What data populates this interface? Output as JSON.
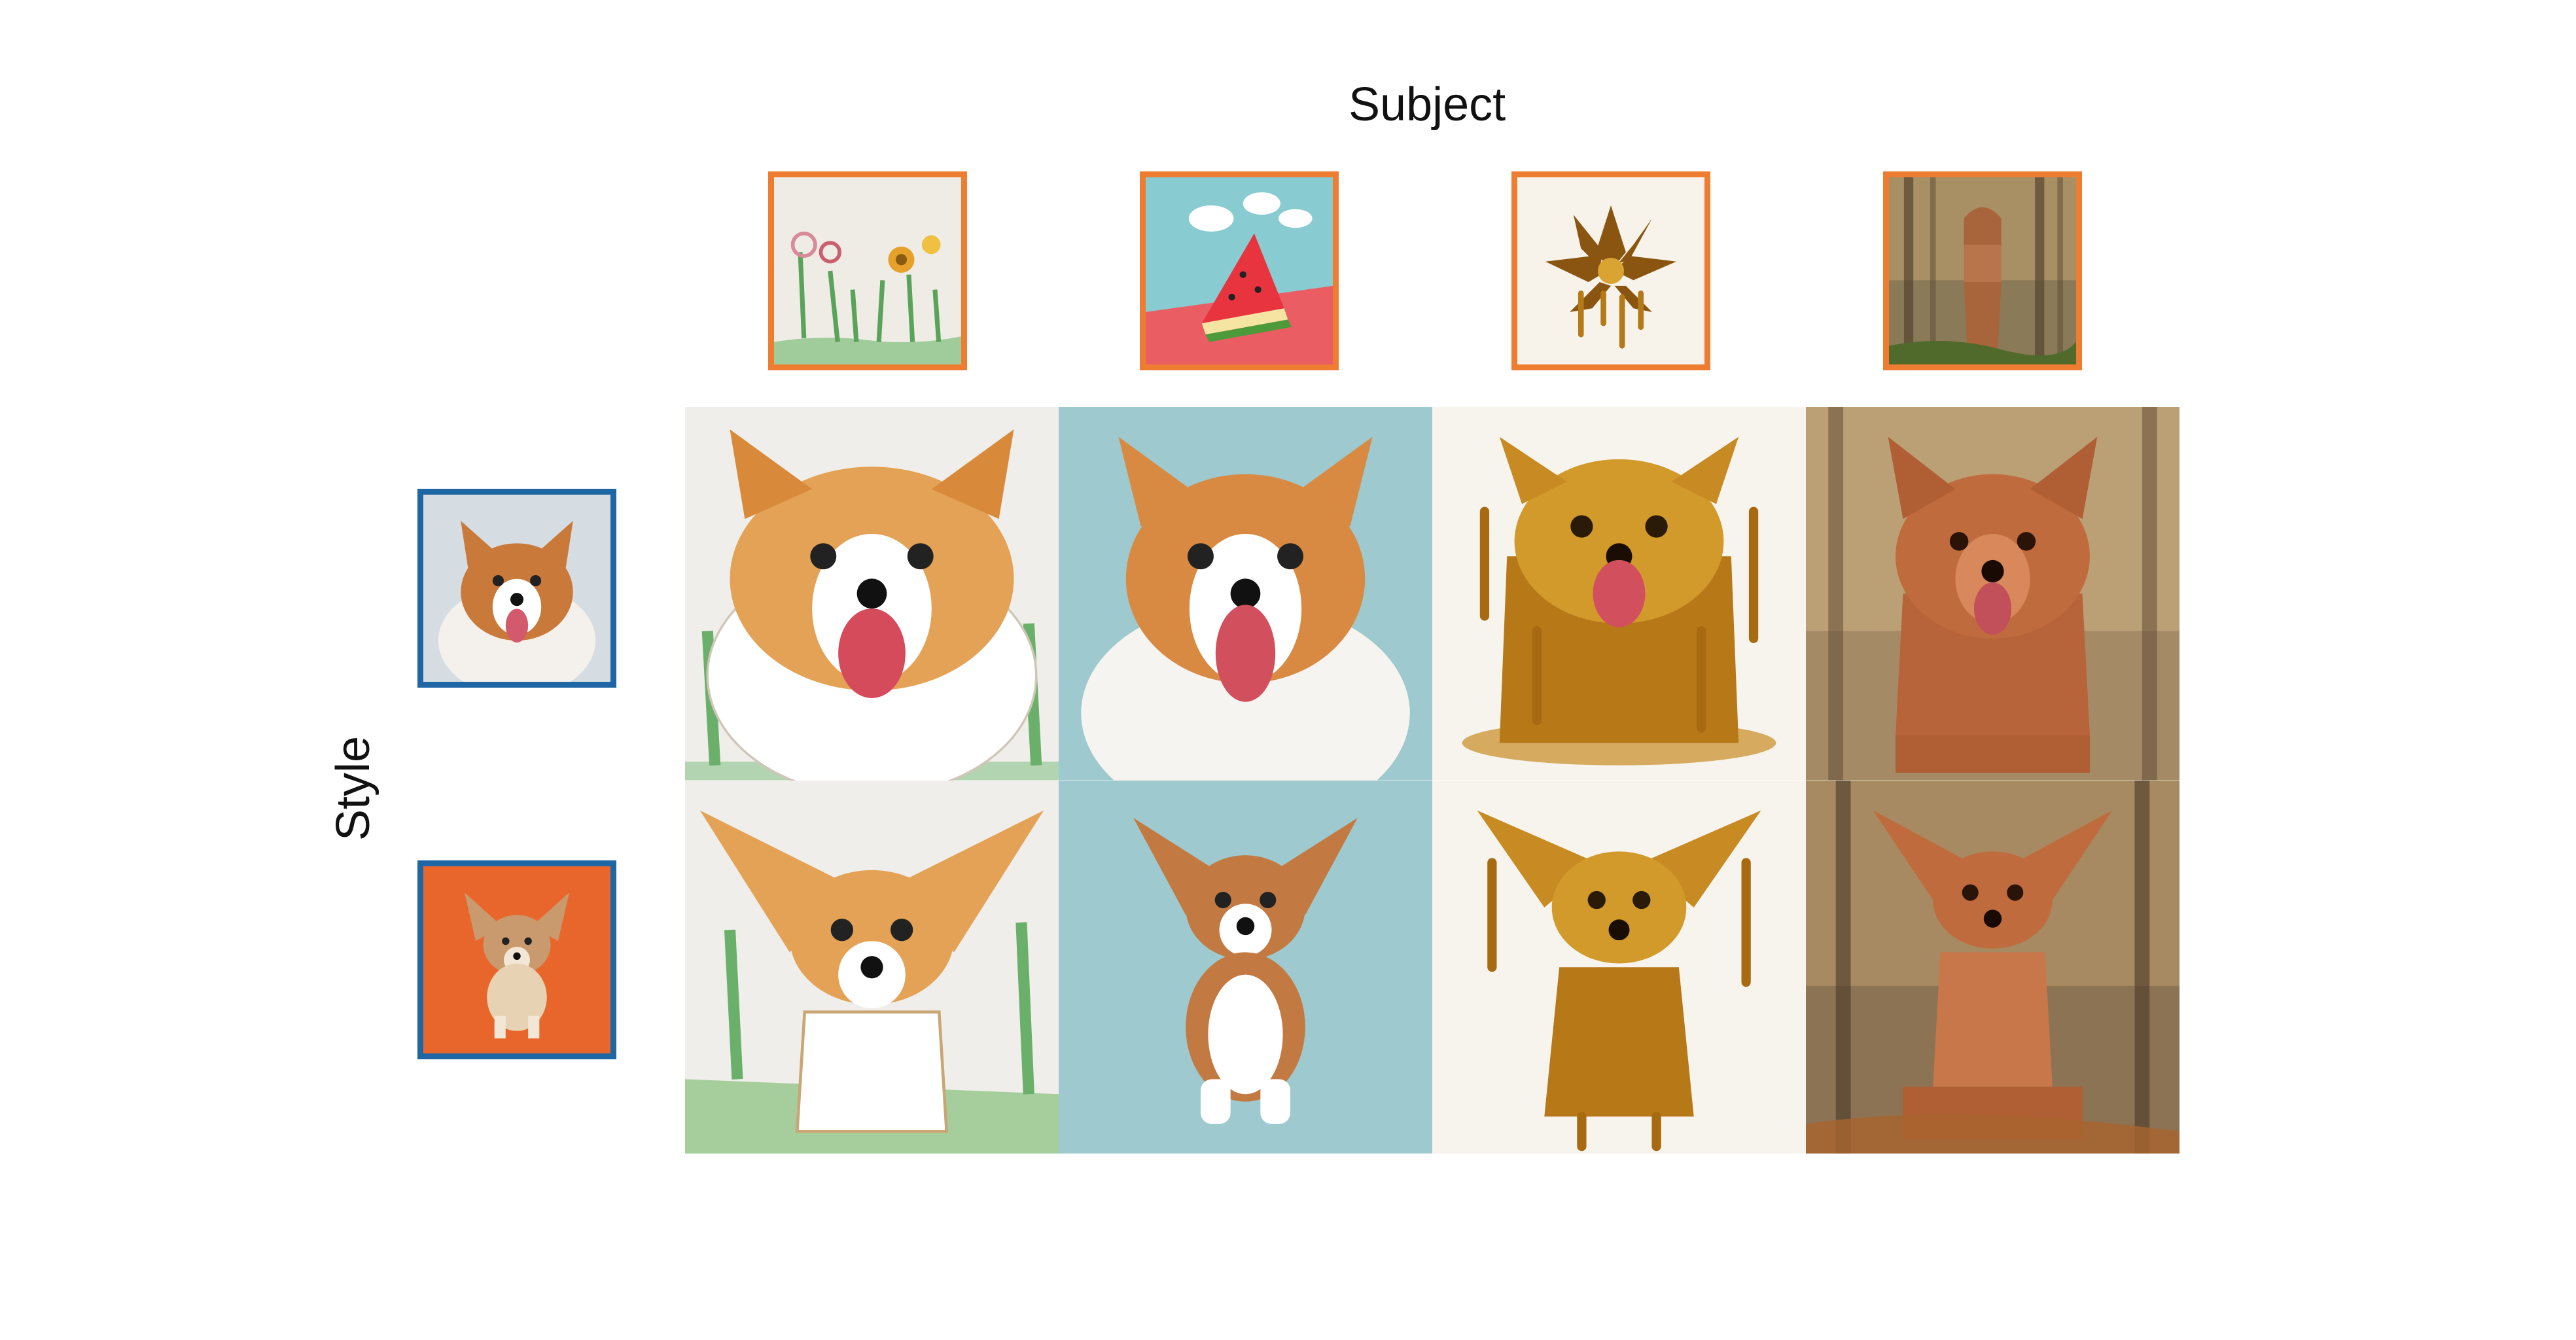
{
  "labels": {
    "subject": "Subject",
    "style": "Style"
  },
  "colors": {
    "subject_border": "#ef7d31",
    "style_border": "#1f66a5",
    "background": "#ffffff"
  },
  "subject_images": [
    {
      "name": "watercolor-flowers-drawing"
    },
    {
      "name": "watermelon-slice-3d-clouds"
    },
    {
      "name": "melting-gold-flower"
    },
    {
      "name": "carved-wooden-statue-forest"
    }
  ],
  "style_images": [
    {
      "name": "corgi-tongue-out-photo"
    },
    {
      "name": "corgi-puppy-orange-background"
    }
  ],
  "grid": {
    "rows": 2,
    "cols": 4
  }
}
